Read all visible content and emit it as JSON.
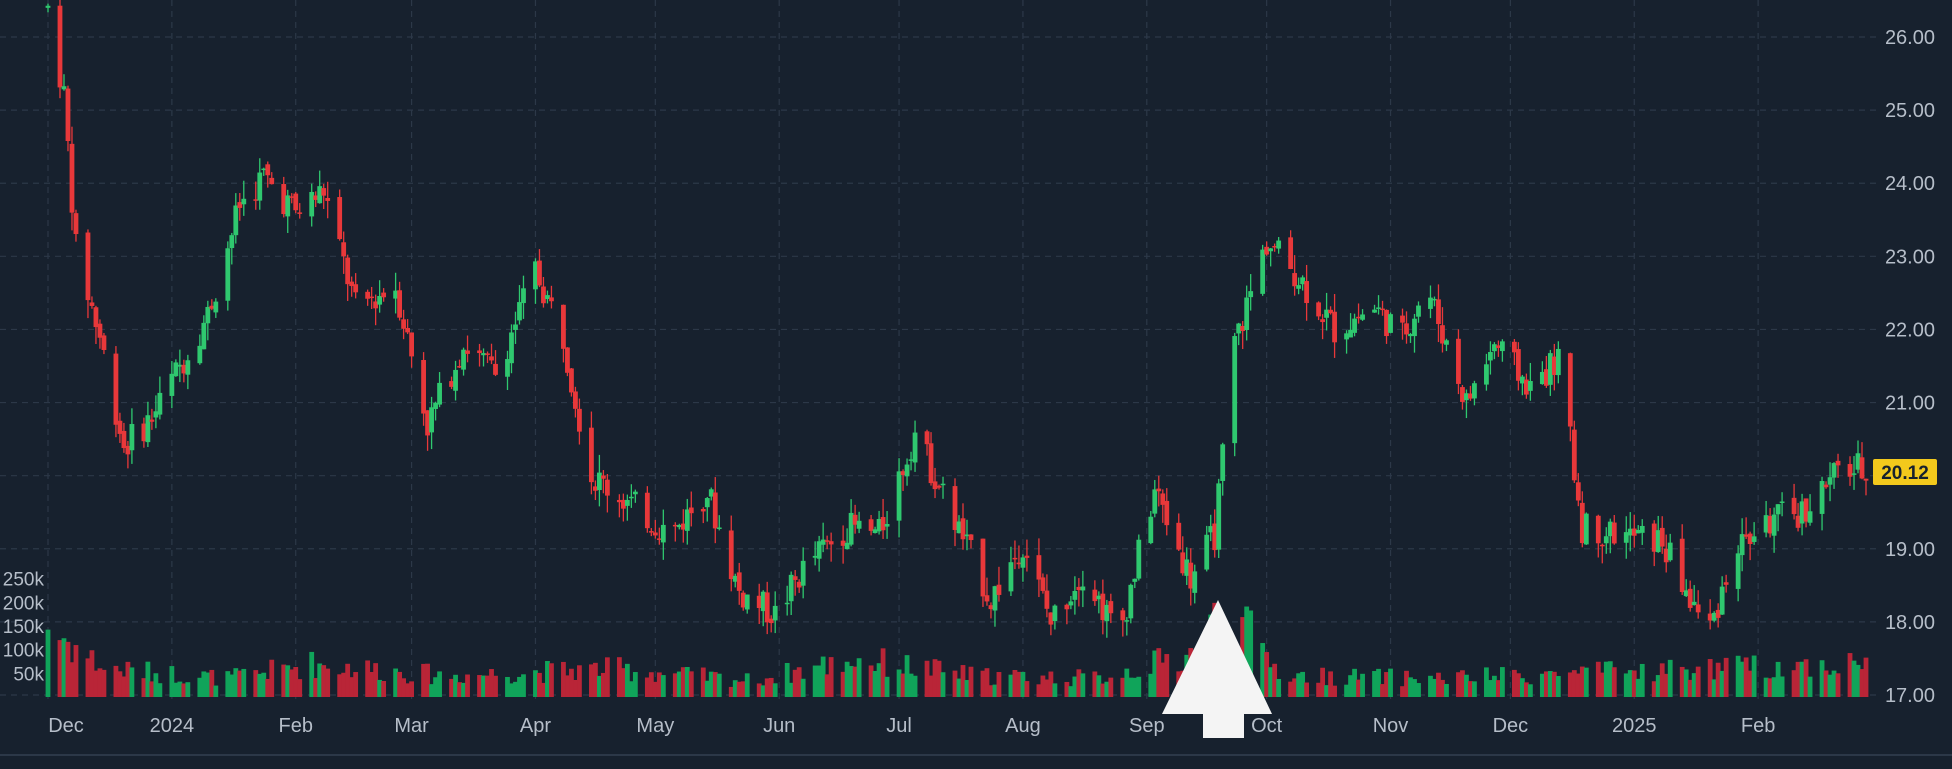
{
  "chart_data": {
    "type": "candlestick",
    "title": "",
    "xlabel": "",
    "ylabel": "",
    "grid": true,
    "ylim": [
      17.0,
      26.5
    ],
    "price_axis": {
      "position": "right",
      "ticks": [
        "26.00",
        "25.00",
        "24.00",
        "23.00",
        "22.00",
        "21.00",
        "20.00",
        "19.00",
        "18.00",
        "17.00"
      ]
    },
    "volume_axis": {
      "position": "left",
      "ticks": [
        "250k",
        "200k",
        "150k",
        "100k",
        "50k"
      ],
      "max": 300000
    },
    "time_axis": {
      "start": "2023-12-01",
      "end": "2025-02-28",
      "labels": [
        {
          "date": "2023-12-01",
          "text": "Dec"
        },
        {
          "date": "2024-01-01",
          "text": "2024"
        },
        {
          "date": "2024-02-01",
          "text": "Feb"
        },
        {
          "date": "2024-03-01",
          "text": "Mar"
        },
        {
          "date": "2024-04-01",
          "text": "Apr"
        },
        {
          "date": "2024-05-01",
          "text": "May"
        },
        {
          "date": "2024-06-01",
          "text": "Jun"
        },
        {
          "date": "2024-07-01",
          "text": "Jul"
        },
        {
          "date": "2024-08-01",
          "text": "Aug"
        },
        {
          "date": "2024-09-01",
          "text": "Sep"
        },
        {
          "date": "2024-10-01",
          "text": "Oct"
        },
        {
          "date": "2024-11-01",
          "text": "Nov"
        },
        {
          "date": "2024-12-01",
          "text": "Dec"
        },
        {
          "date": "2025-01-01",
          "text": "2025"
        },
        {
          "date": "2025-02-01",
          "text": "Feb"
        }
      ]
    },
    "price_trend": [
      [
        "2023-12-01",
        26.4
      ],
      [
        "2023-12-05",
        25.2
      ],
      [
        "2023-12-08",
        23.1
      ],
      [
        "2023-12-14",
        21.9
      ],
      [
        "2023-12-20",
        20.4
      ],
      [
        "2023-12-27",
        20.8
      ],
      [
        "2024-01-03",
        21.5
      ],
      [
        "2024-01-10",
        22.2
      ],
      [
        "2024-01-18",
        23.7
      ],
      [
        "2024-01-24",
        24.1
      ],
      [
        "2024-02-01",
        23.6
      ],
      [
        "2024-02-08",
        23.9
      ],
      [
        "2024-02-16",
        22.3
      ],
      [
        "2024-02-26",
        22.6
      ],
      [
        "2024-03-05",
        20.7
      ],
      [
        "2024-03-14",
        21.8
      ],
      [
        "2024-03-22",
        21.4
      ],
      [
        "2024-04-01",
        22.8
      ],
      [
        "2024-04-08",
        21.9
      ],
      [
        "2024-04-15",
        20.0
      ],
      [
        "2024-04-25",
        19.6
      ],
      [
        "2024-05-05",
        19.2
      ],
      [
        "2024-05-14",
        19.8
      ],
      [
        "2024-05-22",
        18.4
      ],
      [
        "2024-05-31",
        18.1
      ],
      [
        "2024-06-08",
        18.8
      ],
      [
        "2024-06-18",
        19.3
      ],
      [
        "2024-06-26",
        19.2
      ],
      [
        "2024-07-05",
        20.6
      ],
      [
        "2024-07-14",
        19.5
      ],
      [
        "2024-07-24",
        18.3
      ],
      [
        "2024-08-01",
        19.1
      ],
      [
        "2024-08-08",
        18.0
      ],
      [
        "2024-08-16",
        18.7
      ],
      [
        "2024-08-25",
        17.8
      ],
      [
        "2024-09-03",
        19.8
      ],
      [
        "2024-09-12",
        18.6
      ],
      [
        "2024-09-18",
        19.2
      ],
      [
        "2024-09-23",
        21.8
      ],
      [
        "2024-10-01",
        23.2
      ],
      [
        "2024-10-08",
        22.8
      ],
      [
        "2024-10-18",
        22.0
      ],
      [
        "2024-10-28",
        22.3
      ],
      [
        "2024-11-04",
        21.9
      ],
      [
        "2024-11-10",
        22.6
      ],
      [
        "2024-11-20",
        21.0
      ],
      [
        "2024-11-27",
        21.8
      ],
      [
        "2024-12-06",
        21.2
      ],
      [
        "2024-12-13",
        21.6
      ],
      [
        "2024-12-19",
        19.3
      ],
      [
        "2024-12-28",
        19.2
      ],
      [
        "2025-01-08",
        19.1
      ],
      [
        "2025-01-15",
        18.3
      ],
      [
        "2025-01-20",
        17.9
      ],
      [
        "2025-01-26",
        19.0
      ],
      [
        "2025-02-05",
        19.4
      ],
      [
        "2025-02-12",
        19.5
      ],
      [
        "2025-02-22",
        20.1
      ]
    ],
    "volume_trend": [
      [
        "2023-12-01",
        150000
      ],
      [
        "2023-12-15",
        60000
      ],
      [
        "2024-01-15",
        40000
      ],
      [
        "2024-02-05",
        70000
      ],
      [
        "2024-03-10",
        45000
      ],
      [
        "2024-04-20",
        60000
      ],
      [
        "2024-05-25",
        35000
      ],
      [
        "2024-06-20",
        80000
      ],
      [
        "2024-07-20",
        45000
      ],
      [
        "2024-08-20",
        40000
      ],
      [
        "2024-09-12",
        90000
      ],
      [
        "2024-09-21",
        190000
      ],
      [
        "2024-10-05",
        45000
      ],
      [
        "2024-11-15",
        40000
      ],
      [
        "2024-12-15",
        50000
      ],
      [
        "2025-01-20",
        60000
      ],
      [
        "2025-02-22",
        70000
      ]
    ],
    "last_price": "20.12"
  },
  "colors": {
    "background": "#17212e",
    "grid": "#2c3848",
    "axis_text": "#b6bec9",
    "up": "#2fc86f",
    "down": "#e8383a",
    "volume_up": "#10a45a",
    "volume_down": "#b92537",
    "last_price_bg": "#f3c91c",
    "last_price_text": "#17212e",
    "marker": "#ffffff"
  },
  "annotations": {
    "arrow_marker": "up-arrow-marker"
  }
}
